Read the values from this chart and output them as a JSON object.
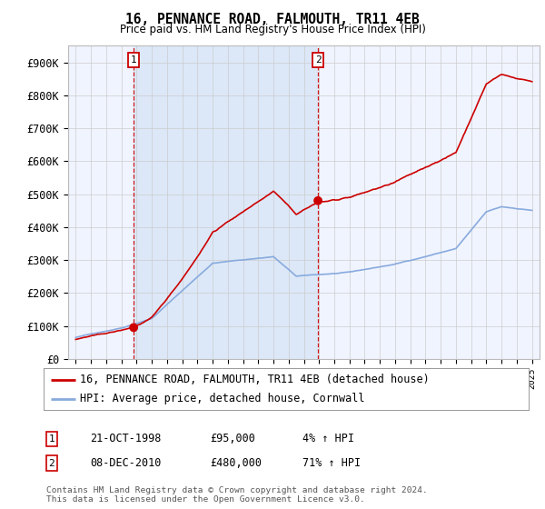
{
  "title": "16, PENNANCE ROAD, FALMOUTH, TR11 4EB",
  "subtitle": "Price paid vs. HM Land Registry's House Price Index (HPI)",
  "yticks": [
    0,
    100000,
    200000,
    300000,
    400000,
    500000,
    600000,
    700000,
    800000,
    900000
  ],
  "ylim": [
    0,
    950000
  ],
  "sale1_date": 1998.81,
  "sale1_price": 95000,
  "sale2_date": 2010.93,
  "sale2_price": 480000,
  "sale1_label": "1",
  "sale2_label": "2",
  "vline_color": "#cc0000",
  "sale_dot_color": "#cc0000",
  "hpi_line_color": "#88aadd",
  "price_line_color": "#cc0000",
  "background_color": "#ffffff",
  "plot_bg_color": "#f0f4ff",
  "shade_color": "#dce8f8",
  "grid_color": "#cccccc",
  "legend_house": "16, PENNANCE ROAD, FALMOUTH, TR11 4EB (detached house)",
  "legend_hpi": "HPI: Average price, detached house, Cornwall",
  "table_row1": [
    "1",
    "21-OCT-1998",
    "£95,000",
    "4% ↑ HPI"
  ],
  "table_row2": [
    "2",
    "08-DEC-2010",
    "£480,000",
    "71% ↑ HPI"
  ],
  "footnote": "Contains HM Land Registry data © Crown copyright and database right 2024.\nThis data is licensed under the Open Government Licence v3.0.",
  "xlim_start": 1994.5,
  "xlim_end": 2025.5
}
